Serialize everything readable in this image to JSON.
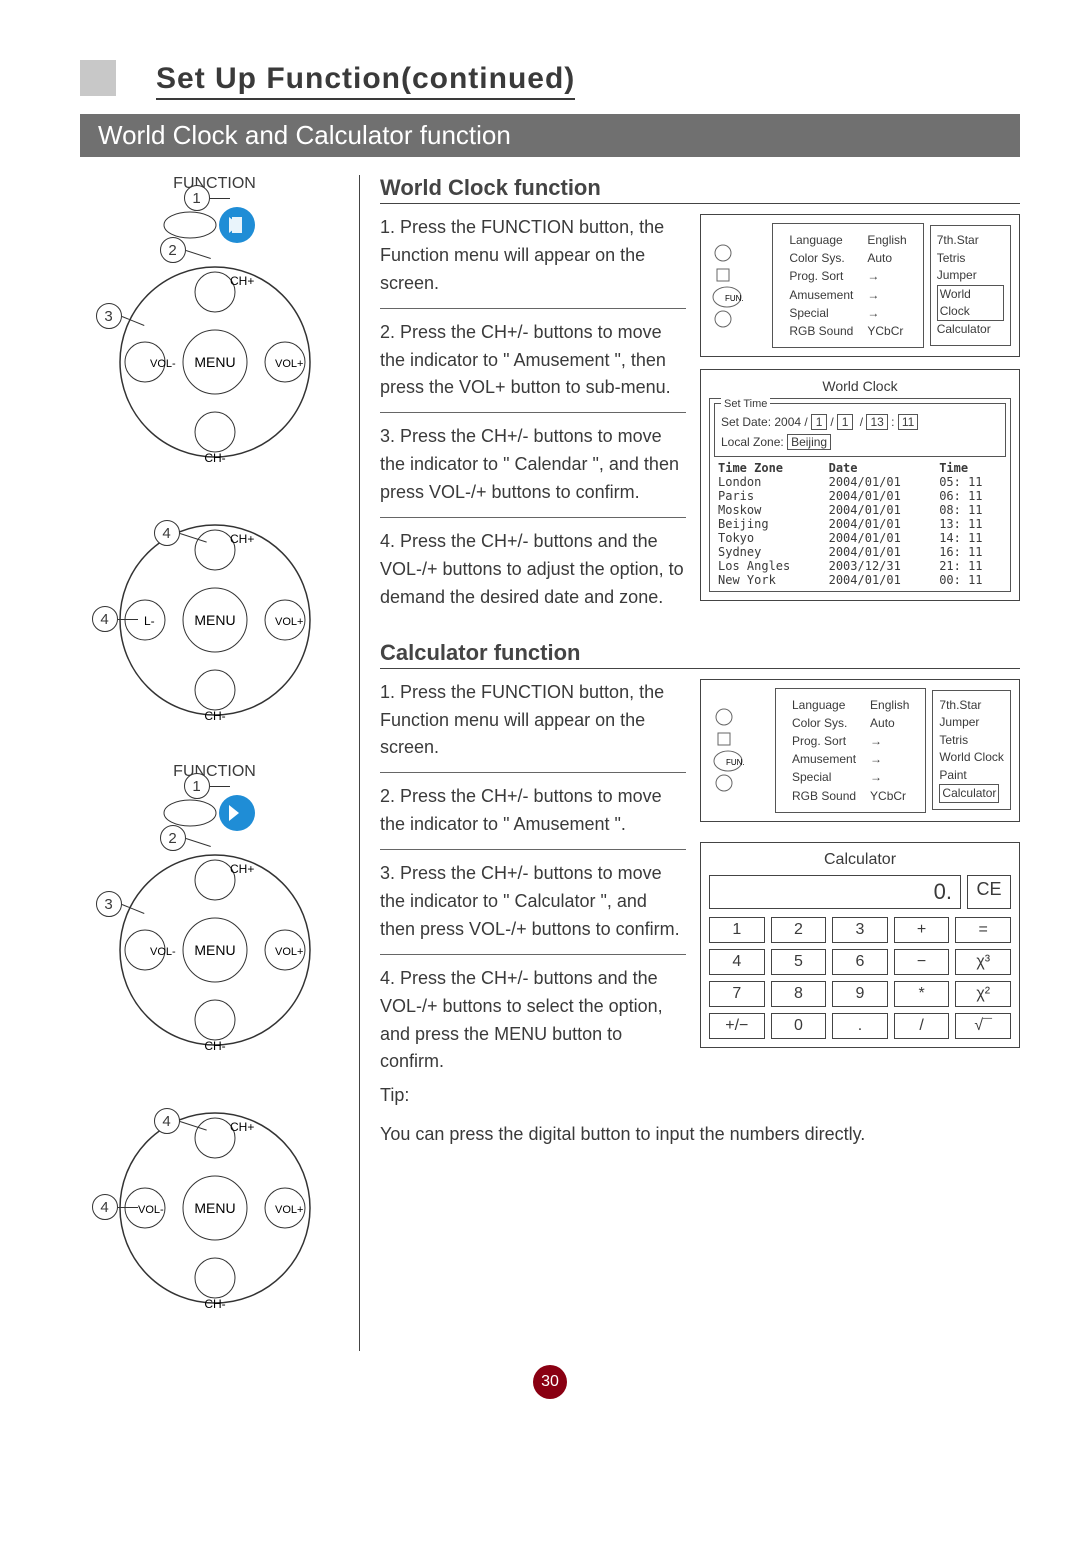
{
  "header": {
    "main_title": "Set Up Function(continued)",
    "sub_banner": "World Clock and Calculator function"
  },
  "section_worldclock": {
    "title": "World Clock function",
    "steps": [
      "1. Press the FUNCTION button, the Function menu will appear on the screen.",
      "2. Press the CH+/- buttons to move the indicator to \" Amusement \", then press the VOL+ button to sub-menu.",
      "3. Press the CH+/- buttons to move the indicator to \" Calendar \", and then press VOL-/+ buttons to confirm.",
      "4. Press the CH+/- buttons and the VOL-/+ buttons to adjust the option, to demand the desired date and zone."
    ],
    "menu": {
      "fun_label": "FUN.",
      "rows": [
        [
          "Language",
          "English"
        ],
        [
          "Color Sys.",
          "Auto"
        ],
        [
          "Prog. Sort",
          "→"
        ],
        [
          "Amusement",
          "→"
        ],
        [
          "Special",
          "→"
        ],
        [
          "RGB Sound",
          "YCbCr"
        ]
      ],
      "sidelist": [
        "7th.Star",
        "Tetris",
        "Jumper",
        "World Clock",
        "Calculator"
      ],
      "boxed_index": 3
    },
    "wc": {
      "title": "World Clock",
      "set_time_label": "Set Time",
      "set_date_label": "Set Date:",
      "set_date_year": "2004",
      "set_date_m": "1",
      "set_date_d": "1",
      "set_date_h": "13",
      "set_date_min": "11",
      "local_zone_label": "Local Zone:",
      "local_zone_value": "Beijing",
      "headers": [
        "Time Zone",
        "Date",
        "Time"
      ],
      "rows": [
        [
          "London",
          "2004/01/01",
          "05: 11"
        ],
        [
          "Paris",
          "2004/01/01",
          "06: 11"
        ],
        [
          "Moskow",
          "2004/01/01",
          "08: 11"
        ],
        [
          "Beijing",
          "2004/01/01",
          "13: 11"
        ],
        [
          "Tokyo",
          "2004/01/01",
          "14: 11"
        ],
        [
          "Sydney",
          "2004/01/01",
          "16: 11"
        ],
        [
          "Los Angles",
          "2003/12/31",
          "21: 11"
        ],
        [
          "New York",
          "2004/01/01",
          "00: 11"
        ]
      ]
    }
  },
  "section_calc": {
    "title": "Calculator function",
    "steps": [
      "1. Press the FUNCTION button, the Function menu will appear on the screen.",
      "2. Press the CH+/- buttons to move the indicator to \" Amusement \".",
      "3. Press the CH+/- buttons to move the indicator to \" Calculator \", and then press VOL-/+ buttons to confirm.",
      "4. Press the CH+/- buttons and the VOL-/+ buttons to select the option, and press the MENU button to confirm."
    ],
    "menu": {
      "fun_label": "FUN.",
      "rows": [
        [
          "Language",
          "English"
        ],
        [
          "Color Sys.",
          "Auto"
        ],
        [
          "Prog. Sort",
          "→"
        ],
        [
          "Amusement",
          "→"
        ],
        [
          "Special",
          "→"
        ],
        [
          "RGB Sound",
          "YCbCr"
        ]
      ],
      "sidelist": [
        "7th.Star",
        "Jumper",
        "Tetris",
        "World Clock",
        "Paint",
        "Calculator"
      ],
      "boxed_index": 5
    },
    "tip_label": "Tip:",
    "tip_text": "You can press the digital button to input the numbers directly.",
    "calc": {
      "title": "Calculator",
      "display": "0.",
      "ce": "CE",
      "buttons": [
        "1",
        "2",
        "3",
        "+",
        "=",
        "4",
        "5",
        "6",
        "−",
        "χ³",
        "7",
        "8",
        "9",
        "*",
        "χ²",
        "+/−",
        "0",
        ".",
        "/",
        "√¯"
      ]
    }
  },
  "remote": {
    "function_label": "FUNCTION",
    "menu": "MENU",
    "chp": "CH+",
    "chm": "CH-",
    "volp": "VOL+",
    "volm": "VOL-"
  },
  "page_number": "30",
  "colors": {
    "banner_bg": "#707070",
    "accent_blue": "#1f8dd6",
    "pagebadge": "#8a0012",
    "grey_box": "#c8c8c8"
  }
}
